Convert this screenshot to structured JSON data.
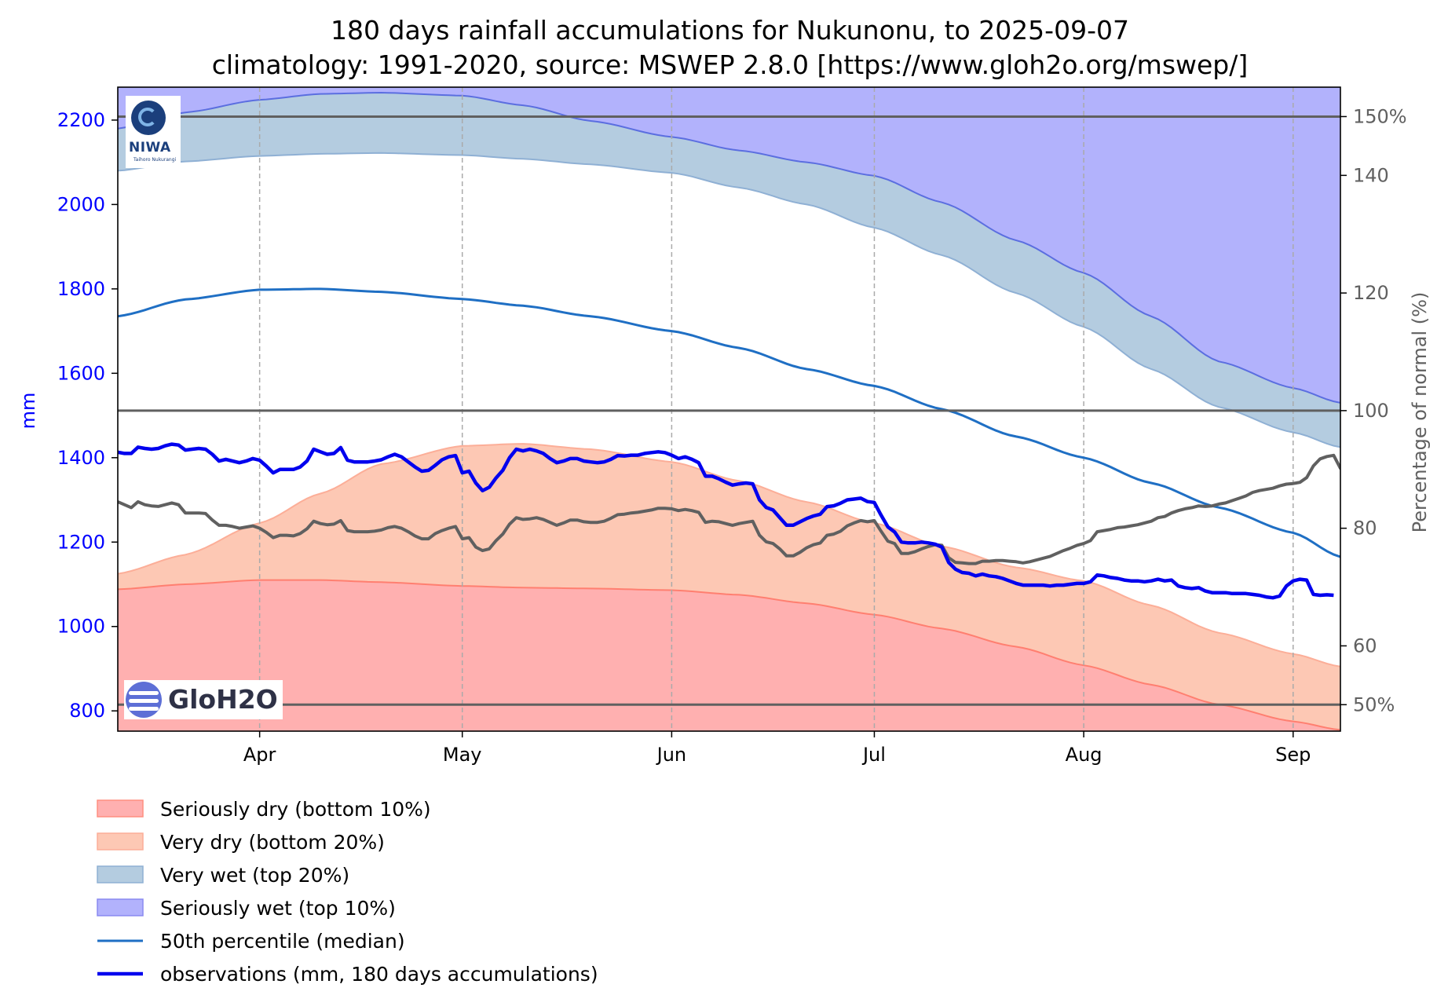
{
  "chart_data": {
    "type": "area",
    "title": "180 days rainfall accumulations for Nukunonu, to 2025-09-07",
    "subtitle": "climatology: 1991-2020, source: MSWEP 2.8.0 [https://www.gloh2o.org/mswep/]",
    "ylabel": "mm",
    "y2label": "Percentage of normal (%)",
    "ylim": [
      752,
      2278
    ],
    "y2lim": [
      45.5,
      155
    ],
    "xlim": [
      0,
      181
    ],
    "x_tick_labels": [
      {
        "label": "Apr",
        "day": 21
      },
      {
        "label": "May",
        "day": 51
      },
      {
        "label": "Jun",
        "day": 82
      },
      {
        "label": "Jul",
        "day": 112
      },
      {
        "label": "Aug",
        "day": 143
      },
      {
        "label": "Sep",
        "day": 174
      }
    ],
    "y_ticks": [
      800,
      1000,
      1200,
      1400,
      1600,
      1800,
      2000,
      2200
    ],
    "y2_ticks": [
      {
        "value": 150,
        "label": "150%"
      },
      {
        "value": 140,
        "label": "140"
      },
      {
        "value": 120,
        "label": "120"
      },
      {
        "value": 100,
        "label": "100"
      },
      {
        "value": 80,
        "label": "80"
      },
      {
        "value": 60,
        "label": "60"
      },
      {
        "value": 50,
        "label": "50%"
      }
    ],
    "reference_lines_pct": [
      150,
      100,
      50
    ],
    "grid": "vertical dashed at month ticks",
    "legend_placement": "below",
    "day_knots": [
      0,
      10,
      21,
      30,
      39,
      51,
      60,
      70,
      82,
      92,
      102,
      112,
      122,
      133,
      143,
      153,
      163,
      174,
      181
    ],
    "bands": {
      "p10": [
        1088,
        1100,
        1110,
        1110,
        1105,
        1096,
        1092,
        1090,
        1086,
        1075,
        1055,
        1028,
        995,
        952,
        908,
        862,
        815,
        775,
        755
      ],
      "p20": [
        1125,
        1170,
        1245,
        1315,
        1385,
        1428,
        1433,
        1420,
        1390,
        1345,
        1295,
        1245,
        1190,
        1140,
        1108,
        1050,
        985,
        935,
        905
      ],
      "median": [
        1735,
        1775,
        1798,
        1800,
        1793,
        1776,
        1760,
        1735,
        1700,
        1660,
        1610,
        1570,
        1515,
        1450,
        1400,
        1340,
        1282,
        1222,
        1165
      ],
      "p80": [
        2080,
        2102,
        2115,
        2120,
        2122,
        2117,
        2108,
        2095,
        2075,
        2040,
        2000,
        1945,
        1880,
        1790,
        1710,
        1610,
        1520,
        1460,
        1425
      ],
      "p90": [
        2180,
        2218,
        2248,
        2262,
        2265,
        2258,
        2235,
        2198,
        2160,
        2128,
        2100,
        2068,
        2005,
        1915,
        1838,
        1735,
        1628,
        1565,
        1530
      ]
    },
    "observations_mm": [
      1413,
      1410,
      1410,
      1425,
      1422,
      1420,
      1422,
      1428,
      1432,
      1430,
      1418,
      1420,
      1422,
      1420,
      1408,
      1392,
      1396,
      1392,
      1388,
      1392,
      1398,
      1394,
      1380,
      1364,
      1372,
      1372,
      1372,
      1378,
      1392,
      1420,
      1414,
      1408,
      1410,
      1424,
      1394,
      1390,
      1390,
      1390,
      1392,
      1395,
      1402,
      1408,
      1402,
      1390,
      1378,
      1368,
      1370,
      1382,
      1395,
      1402,
      1405,
      1364,
      1368,
      1340,
      1322,
      1330,
      1352,
      1370,
      1400,
      1420,
      1416,
      1420,
      1416,
      1410,
      1398,
      1388,
      1392,
      1398,
      1398,
      1392,
      1390,
      1388,
      1390,
      1396,
      1405,
      1404,
      1406,
      1406,
      1410,
      1412,
      1414,
      1412,
      1406,
      1398,
      1402,
      1396,
      1388,
      1356,
      1356,
      1350,
      1342,
      1335,
      1338,
      1340,
      1338,
      1300,
      1282,
      1276,
      1258,
      1240,
      1240,
      1248,
      1256,
      1262,
      1266,
      1284,
      1286,
      1292,
      1300,
      1302,
      1304,
      1296,
      1294,
      1264,
      1236,
      1224,
      1200,
      1198,
      1198,
      1200,
      1198,
      1195,
      1188,
      1152,
      1136,
      1128,
      1126,
      1120,
      1124,
      1120,
      1118,
      1114,
      1108,
      1102,
      1098,
      1098,
      1098,
      1098,
      1096,
      1098,
      1098,
      1100,
      1102,
      1102,
      1106,
      1122,
      1120,
      1116,
      1114,
      1110,
      1108,
      1108,
      1106,
      1108,
      1112,
      1108,
      1110,
      1096,
      1092,
      1090,
      1092,
      1084,
      1080,
      1080,
      1080,
      1078,
      1078,
      1078,
      1076,
      1074,
      1070,
      1068,
      1072,
      1096,
      1108,
      1112,
      1110,
      1076,
      1074,
      1075,
      1074
    ],
    "percent_of_normal": [
      84.5,
      84.0,
      83.5,
      84.5,
      84.0,
      83.8,
      83.7,
      84.0,
      84.3,
      84.0,
      82.6,
      82.6,
      82.6,
      82.5,
      81.4,
      80.5,
      80.5,
      80.3,
      80.0,
      80.2,
      80.4,
      80.0,
      79.3,
      78.4,
      78.8,
      78.8,
      78.7,
      79.1,
      79.9,
      81.2,
      80.8,
      80.6,
      80.7,
      81.3,
      79.6,
      79.4,
      79.4,
      79.4,
      79.5,
      79.7,
      80.1,
      80.3,
      80.0,
      79.4,
      78.7,
      78.2,
      78.2,
      79.1,
      79.6,
      80.0,
      80.3,
      78.2,
      78.4,
      76.8,
      76.2,
      76.5,
      77.9,
      79.0,
      80.7,
      81.8,
      81.5,
      81.6,
      81.8,
      81.5,
      81.0,
      80.5,
      80.9,
      81.4,
      81.4,
      81.1,
      81.0,
      81.0,
      81.2,
      81.7,
      82.3,
      82.4,
      82.6,
      82.7,
      82.9,
      83.1,
      83.4,
      83.4,
      83.3,
      83.0,
      83.2,
      83.0,
      82.7,
      81.0,
      81.2,
      81.1,
      80.8,
      80.5,
      80.8,
      81.0,
      81.2,
      78.8,
      77.7,
      77.4,
      76.5,
      75.3,
      75.3,
      75.9,
      76.7,
      77.2,
      77.5,
      78.8,
      79.0,
      79.5,
      80.4,
      80.9,
      81.3,
      81.1,
      81.3,
      79.5,
      77.8,
      77.4,
      75.7,
      75.7,
      76.0,
      76.5,
      76.9,
      77.2,
      77.1,
      75.0,
      74.2,
      74.1,
      74.0,
      74.0,
      74.4,
      74.4,
      74.5,
      74.5,
      74.4,
      74.3,
      74.1,
      74.3,
      74.6,
      74.9,
      75.2,
      75.7,
      76.2,
      76.6,
      77.1,
      77.4,
      77.9,
      79.4,
      79.6,
      79.8,
      80.1,
      80.2,
      80.4,
      80.6,
      80.9,
      81.2,
      81.8,
      82.0,
      82.6,
      83.0,
      83.3,
      83.5,
      83.8,
      83.7,
      83.8,
      84.1,
      84.3,
      84.7,
      85.1,
      85.5,
      86.1,
      86.4,
      86.6,
      86.8,
      87.2,
      87.5,
      87.6,
      87.8,
      88.6,
      90.6,
      91.8,
      92.2,
      92.4,
      90.2,
      90.3,
      90.8,
      91.0
    ],
    "series": [
      {
        "name": "Seriously dry (bottom 10%)",
        "color": "#ffb0b0"
      },
      {
        "name": "Very dry (bottom 20%)",
        "color": "#fdc8b4"
      },
      {
        "name": "Very wet (top 20%)",
        "color": "#b4cce0"
      },
      {
        "name": "Seriously wet (top 10%)",
        "color": "#b2b2fc"
      },
      {
        "name": "50th percentile (median)",
        "color": "#1f6fc4"
      },
      {
        "name": "observations (mm, 180 days accumulations)",
        "color": "#0000ee"
      }
    ],
    "percent_line_color": "#606060"
  },
  "logos": {
    "niwa": {
      "text": "NIWA",
      "subtext": "Taihoro Nukurangi"
    },
    "gloh2o": {
      "text": "GloH2O"
    }
  }
}
